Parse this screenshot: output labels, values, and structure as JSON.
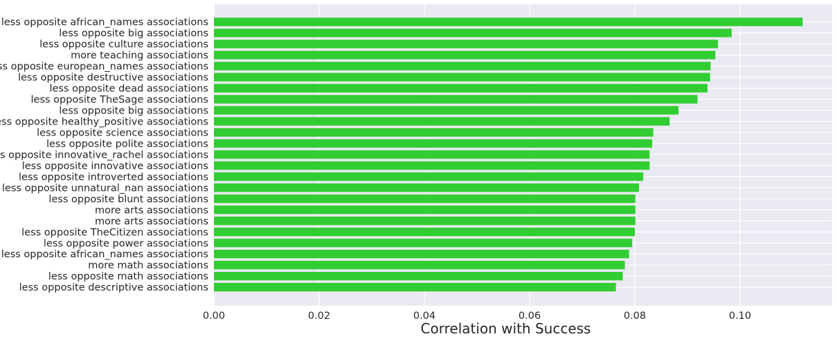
{
  "chart_data": {
    "type": "bar",
    "orientation": "horizontal",
    "title": "",
    "xlabel": "Correlation with Success",
    "ylabel": "",
    "xlim": [
      0.0,
      0.1175
    ],
    "xticks": [
      "0.00",
      "0.02",
      "0.04",
      "0.06",
      "0.08",
      "0.10"
    ],
    "grid": true,
    "categories": [
      "less opposite african_names associations",
      "less opposite big associations",
      "less opposite culture associations",
      "more teaching associations",
      "less opposite european_names associations",
      "less opposite destructive associations",
      "less opposite dead associations",
      "less opposite TheSage associations",
      "less opposite big associations",
      "less opposite healthy_positive associations",
      "less opposite science associations",
      "less opposite polite associations",
      "less opposite innovative_rachel associations",
      "less opposite innovative associations",
      "less opposite introverted associations",
      "less opposite unnatural_nan associations",
      "less opposite blunt associations",
      "more arts associations",
      "more arts associations",
      "less opposite TheCitizen associations",
      "less opposite power associations",
      "less opposite african_names associations",
      "more math associations",
      "less opposite math associations",
      "less opposite descriptive associations"
    ],
    "values": [
      0.1119,
      0.0984,
      0.0958,
      0.0953,
      0.0944,
      0.0943,
      0.0938,
      0.0919,
      0.0883,
      0.0866,
      0.0835,
      0.0833,
      0.0828,
      0.0828,
      0.0816,
      0.0808,
      0.0801,
      0.0801,
      0.0801,
      0.08,
      0.0795,
      0.0789,
      0.0781,
      0.0777,
      0.0764
    ],
    "bar_color": "#32cd32",
    "plot_background": "#eaeaf2",
    "grid_color": "#ffffff"
  }
}
